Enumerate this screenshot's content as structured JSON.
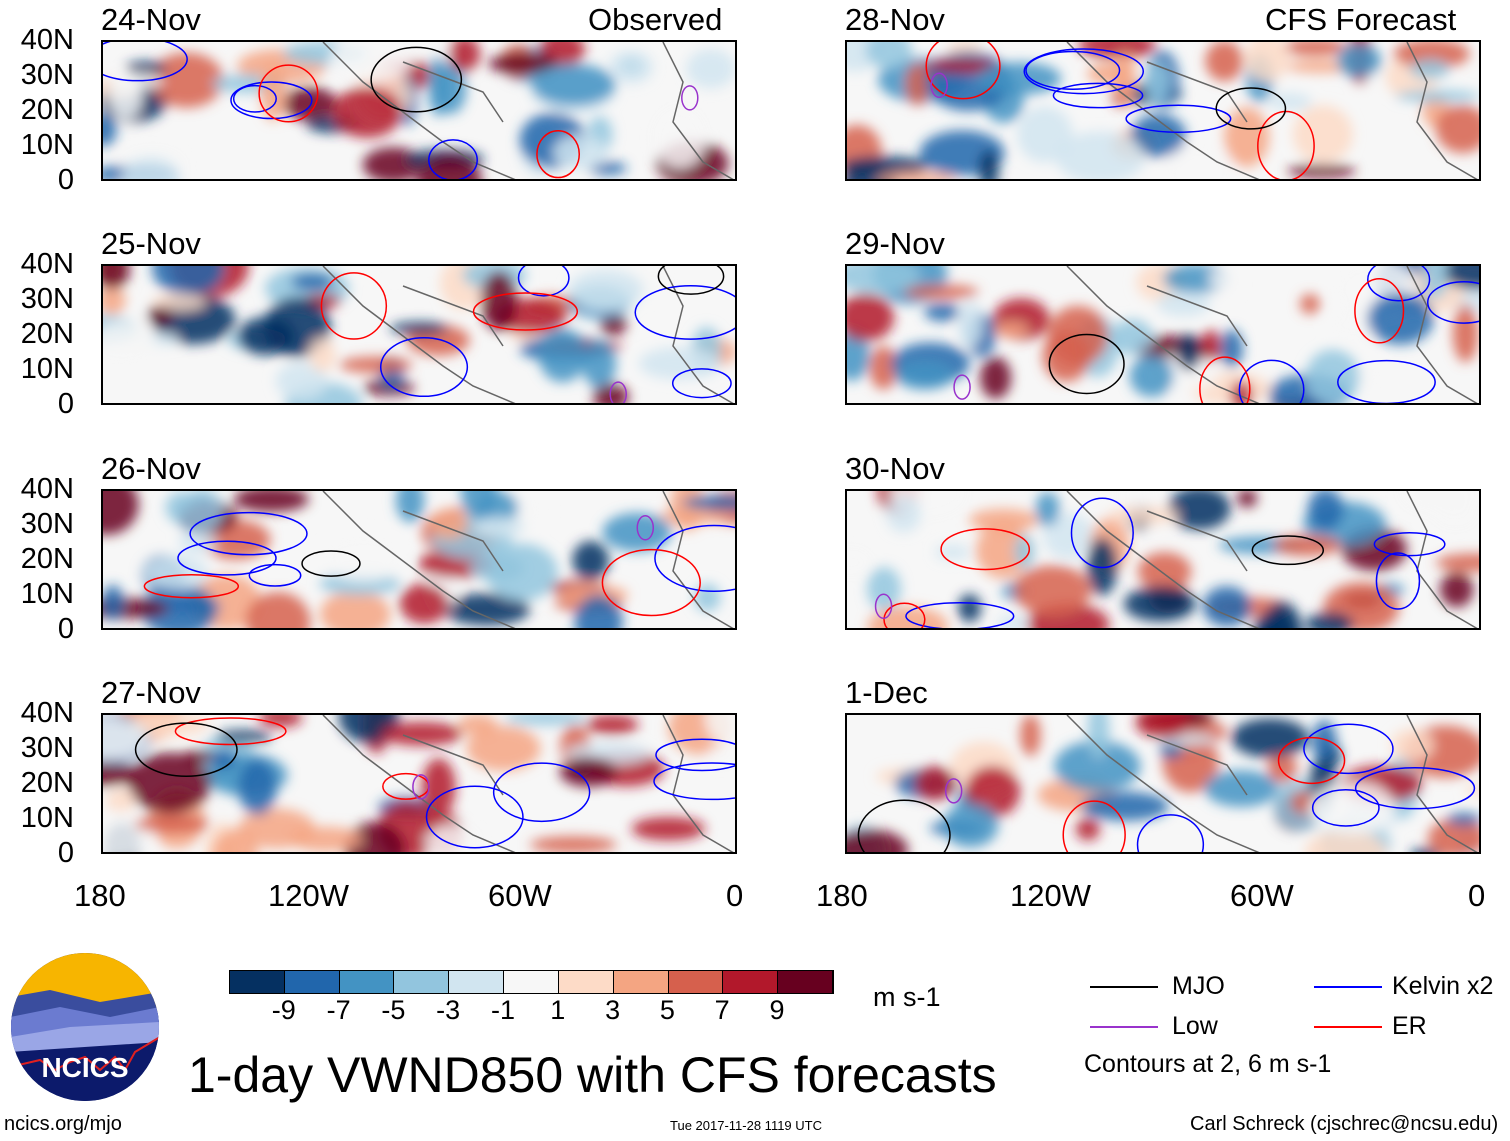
{
  "header": {
    "left_label": "Observed",
    "right_label": "CFS Forecast"
  },
  "panels": [
    {
      "date": "24-Nov",
      "column": "left",
      "row": 0
    },
    {
      "date": "25-Nov",
      "column": "left",
      "row": 1
    },
    {
      "date": "26-Nov",
      "column": "left",
      "row": 2
    },
    {
      "date": "27-Nov",
      "column": "left",
      "row": 3
    },
    {
      "date": "28-Nov",
      "column": "right",
      "row": 0
    },
    {
      "date": "29-Nov",
      "column": "right",
      "row": 1
    },
    {
      "date": "30-Nov",
      "column": "right",
      "row": 2
    },
    {
      "date": "1-Dec",
      "column": "right",
      "row": 3
    }
  ],
  "lat_labels": [
    "40N",
    "30N",
    "20N",
    "10N",
    "0"
  ],
  "lon_labels": [
    "180",
    "120W",
    "60W",
    "0"
  ],
  "colorbar": {
    "labels": [
      "-9",
      "-7",
      "-5",
      "-3",
      "-1",
      "1",
      "3",
      "5",
      "7",
      "9"
    ],
    "colors": [
      "#053061",
      "#2166ac",
      "#4393c3",
      "#92c5de",
      "#d1e5f0",
      "#f7f7f7",
      "#fddbc7",
      "#f4a582",
      "#d6604d",
      "#b2182b",
      "#67001f"
    ],
    "units": "m s-1"
  },
  "legend": {
    "items": [
      {
        "label": "MJO",
        "color": "#000000"
      },
      {
        "label": "Kelvin x2",
        "color": "#0000ff"
      },
      {
        "label": "Low",
        "color": "#9933cc"
      },
      {
        "label": "ER",
        "color": "#ff0000"
      }
    ],
    "contours_note": "Contours at 2, 6 m s-1"
  },
  "title": "1-day VWND850 with CFS forecasts",
  "logo": {
    "text": "NCICS"
  },
  "footer": {
    "url": "ncics.org/mjo",
    "timestamp": "Tue 2017-11-28 1119 UTC",
    "credit": "Carl Schreck (cjschrec@ncsu.edu)"
  }
}
